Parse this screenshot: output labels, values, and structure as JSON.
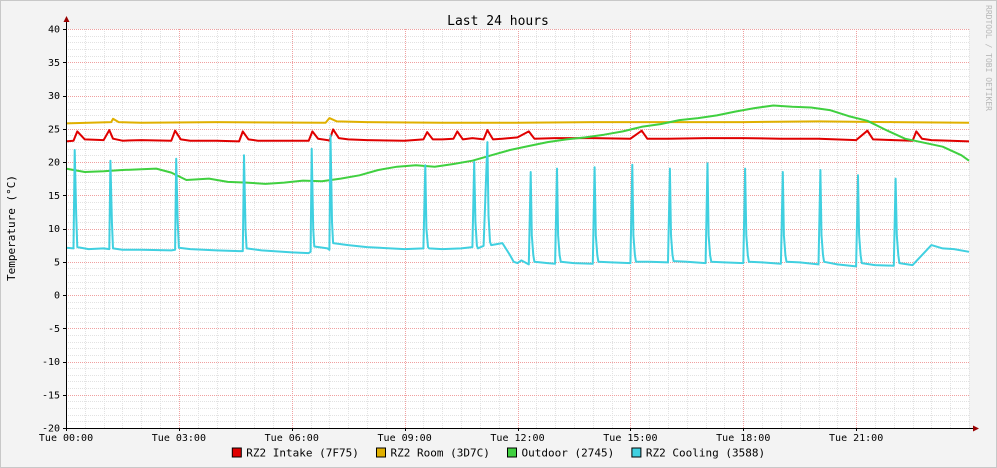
{
  "chart_data": {
    "type": "line",
    "title": "Last 24 hours",
    "ylabel": "Temperature (°C)",
    "xlabel": "",
    "watermark": "RRDTOOL / TOBI OETIKER",
    "ylim": [
      -20,
      40
    ],
    "y_ticks": [
      40,
      35,
      30,
      25,
      20,
      15,
      10,
      5,
      0,
      -5,
      -10,
      -15,
      -20
    ],
    "xlim": [
      0,
      24
    ],
    "x_ticks": [
      {
        "hour": 0,
        "label": "Tue 00:00"
      },
      {
        "hour": 3,
        "label": "Tue 03:00"
      },
      {
        "hour": 6,
        "label": "Tue 06:00"
      },
      {
        "hour": 9,
        "label": "Tue 09:00"
      },
      {
        "hour": 12,
        "label": "Tue 12:00"
      },
      {
        "hour": 15,
        "label": "Tue 15:00"
      },
      {
        "hour": 18,
        "label": "Tue 18:00"
      },
      {
        "hour": 21,
        "label": "Tue 21:00"
      }
    ],
    "grid": true,
    "legend_position": "bottom",
    "series": [
      {
        "name": "RZ2 Intake (7F75)",
        "color": "#e00000",
        "x": [
          0,
          0.2,
          0.3,
          0.5,
          1.0,
          1.15,
          1.25,
          1.5,
          2.0,
          2.8,
          2.9,
          3.05,
          3.3,
          4.0,
          4.6,
          4.7,
          4.85,
          5.1,
          6.0,
          6.45,
          6.55,
          6.7,
          6.95,
          7.0,
          7.1,
          7.25,
          7.5,
          8.0,
          9.0,
          9.5,
          9.6,
          9.75,
          10.0,
          10.3,
          10.4,
          10.55,
          10.8,
          11.1,
          11.2,
          11.35,
          11.6,
          12.0,
          12.3,
          12.45,
          13.0,
          14.0,
          15.0,
          15.3,
          15.45,
          16.0,
          17.0,
          18.0,
          19.0,
          20.0,
          21.0,
          21.3,
          21.45,
          22.0,
          22.5,
          22.6,
          22.75,
          23.0,
          24.0
        ],
        "values": [
          23.1,
          23.2,
          24.6,
          23.4,
          23.3,
          24.8,
          23.5,
          23.2,
          23.3,
          23.2,
          24.7,
          23.4,
          23.2,
          23.2,
          23.1,
          24.6,
          23.4,
          23.2,
          23.2,
          23.2,
          24.6,
          23.5,
          23.3,
          23.2,
          24.9,
          23.6,
          23.4,
          23.3,
          23.2,
          23.4,
          24.5,
          23.4,
          23.4,
          23.5,
          24.6,
          23.4,
          23.6,
          23.4,
          24.8,
          23.4,
          23.5,
          23.7,
          24.6,
          23.5,
          23.6,
          23.6,
          23.5,
          24.7,
          23.5,
          23.5,
          23.6,
          23.6,
          23.5,
          23.5,
          23.3,
          24.7,
          23.4,
          23.3,
          23.2,
          24.6,
          23.5,
          23.3,
          23.1
        ]
      },
      {
        "name": "RZ2 Room (3D7C)",
        "color": "#e0b000",
        "x": [
          0,
          1.2,
          1.25,
          1.4,
          2,
          4,
          6.9,
          7.0,
          7.2,
          8,
          10,
          12,
          14,
          16,
          18,
          20,
          22,
          24
        ],
        "values": [
          25.8,
          26.0,
          26.5,
          26.0,
          25.9,
          26.0,
          25.9,
          26.6,
          26.1,
          26.0,
          25.9,
          25.9,
          26.0,
          26.0,
          26.0,
          26.1,
          26.0,
          25.9
        ]
      },
      {
        "name": "Outdoor (2745)",
        "color": "#40d040",
        "x": [
          0,
          0.5,
          1,
          1.5,
          2,
          2.4,
          2.8,
          3.2,
          3.8,
          4.3,
          4.8,
          5.3,
          5.8,
          6.3,
          6.8,
          7.3,
          7.8,
          8.3,
          8.8,
          9.3,
          9.8,
          10.3,
          10.8,
          11.3,
          11.8,
          12.3,
          12.8,
          13.3,
          13.8,
          14.3,
          14.8,
          15.3,
          15.8,
          16.3,
          16.8,
          17.3,
          17.8,
          18.3,
          18.8,
          19.3,
          19.8,
          20.3,
          20.8,
          21.3,
          21.8,
          22.3,
          22.8,
          23.3,
          23.8,
          24
        ],
        "values": [
          19.0,
          18.5,
          18.6,
          18.8,
          18.9,
          19.0,
          18.4,
          17.3,
          17.5,
          17.0,
          16.9,
          16.7,
          16.9,
          17.2,
          17.1,
          17.5,
          18.0,
          18.8,
          19.3,
          19.5,
          19.3,
          19.7,
          20.2,
          21.0,
          21.8,
          22.4,
          23.0,
          23.4,
          23.7,
          24.1,
          24.6,
          25.3,
          25.7,
          26.3,
          26.6,
          27.0,
          27.6,
          28.1,
          28.5,
          28.3,
          28.2,
          27.8,
          26.9,
          26.2,
          24.8,
          23.5,
          22.9,
          22.3,
          21.0,
          20.2
        ]
      },
      {
        "name": "RZ2 Cooling (3588)",
        "color": "#40d0e0",
        "x": [
          0,
          0.2,
          0.23,
          0.27,
          0.3,
          0.6,
          1.0,
          1.15,
          1.18,
          1.22,
          1.25,
          1.5,
          2.0,
          2.8,
          2.9,
          2.93,
          2.97,
          3.0,
          3.3,
          4.0,
          4.6,
          4.7,
          4.73,
          4.77,
          4.8,
          5.2,
          6.0,
          6.45,
          6.5,
          6.53,
          6.57,
          6.6,
          6.95,
          7.0,
          7.03,
          7.07,
          7.1,
          7.5,
          8.0,
          9.0,
          9.5,
          9.55,
          9.58,
          9.62,
          9.65,
          10.0,
          10.5,
          10.8,
          10.85,
          10.88,
          10.92,
          10.95,
          11.1,
          11.2,
          11.23,
          11.27,
          11.3,
          11.6,
          11.8,
          11.9,
          12.0,
          12.1,
          12.3,
          12.35,
          12.38,
          12.42,
          12.45,
          12.8,
          13.0,
          13.05,
          13.08,
          13.12,
          13.15,
          13.5,
          14.0,
          14.05,
          14.08,
          14.12,
          14.15,
          14.5,
          15.0,
          15.05,
          15.08,
          15.12,
          15.15,
          15.5,
          16.0,
          16.05,
          16.08,
          16.12,
          16.15,
          16.5,
          17.0,
          17.05,
          17.08,
          17.12,
          17.15,
          17.5,
          18.0,
          18.05,
          18.08,
          18.12,
          18.15,
          18.5,
          19.0,
          19.05,
          19.08,
          19.12,
          19.15,
          19.5,
          20.0,
          20.05,
          20.08,
          20.12,
          20.15,
          20.5,
          21.0,
          21.05,
          21.08,
          21.12,
          21.15,
          21.5,
          22.0,
          22.05,
          22.08,
          22.12,
          22.15,
          22.5,
          23.0,
          23.3,
          23.6,
          24.0
        ],
        "values": [
          7.1,
          7.0,
          21.8,
          12.0,
          7.2,
          6.9,
          7.0,
          6.9,
          20.2,
          11.0,
          7.0,
          6.8,
          6.8,
          6.7,
          6.8,
          20.5,
          11.0,
          7.1,
          6.9,
          6.7,
          6.6,
          6.6,
          21.0,
          10.0,
          7.0,
          6.7,
          6.4,
          6.3,
          6.5,
          22.0,
          10.0,
          7.3,
          7.0,
          6.8,
          24.0,
          11.0,
          7.8,
          7.5,
          7.2,
          6.9,
          7.0,
          19.5,
          10.0,
          7.2,
          7.0,
          6.9,
          7.0,
          7.2,
          20.0,
          11.0,
          7.4,
          7.0,
          7.4,
          23.0,
          12.0,
          8.0,
          7.5,
          7.8,
          6.0,
          5.0,
          4.8,
          5.2,
          4.6,
          18.5,
          9.0,
          6.0,
          5.0,
          4.8,
          4.7,
          19.0,
          9.0,
          6.0,
          5.0,
          4.8,
          4.7,
          19.2,
          9.0,
          6.0,
          5.0,
          4.9,
          4.8,
          19.6,
          9.0,
          6.0,
          5.0,
          5.0,
          4.9,
          19.0,
          9.0,
          6.0,
          5.1,
          5.0,
          4.8,
          19.8,
          9.0,
          6.0,
          5.0,
          4.9,
          4.8,
          19.0,
          9.0,
          6.0,
          5.0,
          4.9,
          4.7,
          18.5,
          9.0,
          6.0,
          5.0,
          4.9,
          4.6,
          18.8,
          9.0,
          6.0,
          5.0,
          4.6,
          4.3,
          18.0,
          9.0,
          6.0,
          4.8,
          4.5,
          4.4,
          17.5,
          9.0,
          6.0,
          4.8,
          4.5,
          7.5,
          7.0,
          6.9,
          6.5
        ]
      }
    ]
  }
}
